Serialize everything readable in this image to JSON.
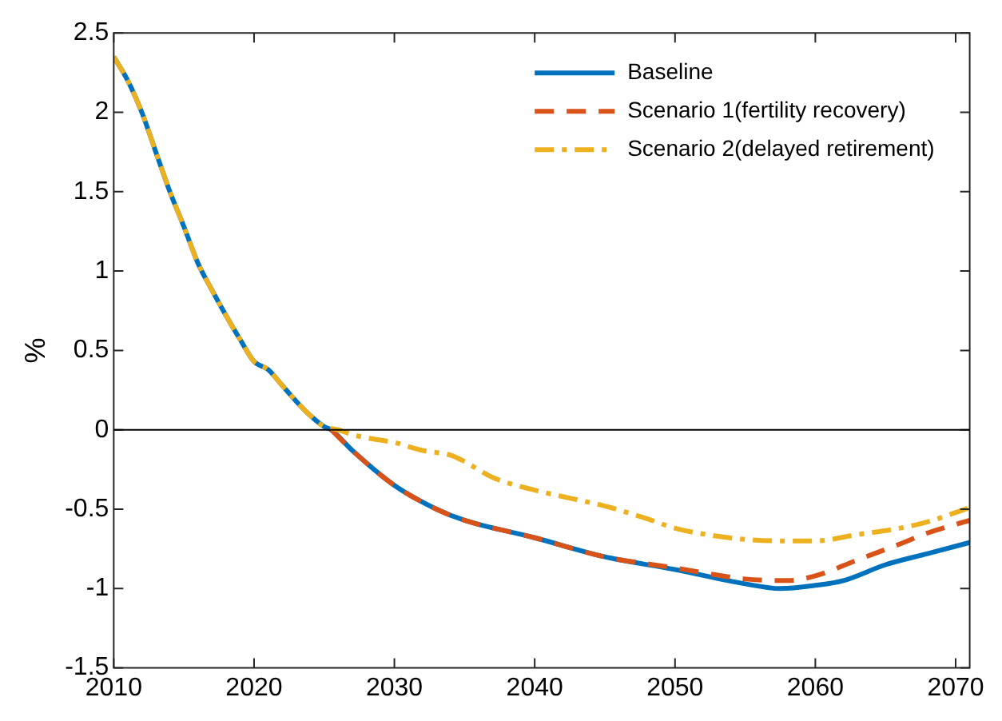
{
  "chart_data": {
    "type": "line",
    "ylabel": "%",
    "xlim": [
      2010,
      2071
    ],
    "xticks": [
      2010,
      2020,
      2030,
      2040,
      2050,
      2060,
      2070
    ],
    "ylim": [
      -1.5,
      2.5
    ],
    "yticks": [
      -1.5,
      -1,
      -0.5,
      0,
      0.5,
      1,
      1.5,
      2,
      2.5
    ],
    "legend": "top right",
    "grid": false,
    "marker": "none",
    "ref_lines": [
      {
        "axis": "y",
        "value": 0,
        "color": "#000000"
      }
    ],
    "series": [
      {
        "name": "Baseline",
        "color": "#0072bd",
        "line_style": "solid",
        "x": [
          2010,
          2011,
          2012,
          2013,
          2014,
          2015,
          2016,
          2017,
          2018,
          2019,
          2020,
          2021,
          2022,
          2023,
          2024,
          2025,
          2025.5,
          2027,
          2030,
          2033,
          2035,
          2040,
          2045,
          2050,
          2055,
          2057.5,
          2060,
          2062,
          2065,
          2068,
          2071
        ],
        "values": [
          2.35,
          2.2,
          2.0,
          1.75,
          1.5,
          1.28,
          1.05,
          0.88,
          0.72,
          0.57,
          0.43,
          0.38,
          0.28,
          0.18,
          0.09,
          0.02,
          0,
          -0.13,
          -0.35,
          -0.5,
          -0.57,
          -0.68,
          -0.8,
          -0.88,
          -0.97,
          -1.0,
          -0.98,
          -0.95,
          -0.85,
          -0.78,
          -0.71
        ]
      },
      {
        "name": "Scenario 1(fertility recovery)",
        "color": "#d95319",
        "line_style": "dashed",
        "x": [
          2025.5,
          2027,
          2030,
          2033,
          2035,
          2040,
          2045,
          2050,
          2055,
          2058,
          2060,
          2063,
          2066,
          2068,
          2071
        ],
        "values": [
          0,
          -0.13,
          -0.35,
          -0.5,
          -0.57,
          -0.68,
          -0.8,
          -0.87,
          -0.94,
          -0.95,
          -0.92,
          -0.82,
          -0.72,
          -0.65,
          -0.57
        ]
      },
      {
        "name": "Scenario 2(delayed retirement)",
        "color": "#edb120",
        "line_style": "dashdot",
        "x": [
          2010,
          2011,
          2012,
          2013,
          2014,
          2015,
          2016,
          2017,
          2018,
          2019,
          2020,
          2021,
          2022,
          2023,
          2024,
          2025,
          2026,
          2027,
          2028,
          2030,
          2032,
          2034,
          2035,
          2037,
          2040,
          2043,
          2045,
          2048,
          2050,
          2053,
          2055,
          2058,
          2060,
          2063,
          2066,
          2068,
          2071
        ],
        "values": [
          2.35,
          2.2,
          2.0,
          1.75,
          1.5,
          1.28,
          1.05,
          0.88,
          0.72,
          0.57,
          0.43,
          0.38,
          0.28,
          0.18,
          0.09,
          0.02,
          0,
          -0.03,
          -0.05,
          -0.08,
          -0.13,
          -0.16,
          -0.2,
          -0.3,
          -0.38,
          -0.44,
          -0.48,
          -0.56,
          -0.62,
          -0.67,
          -0.69,
          -0.7,
          -0.7,
          -0.66,
          -0.62,
          -0.58,
          -0.49
        ]
      }
    ]
  }
}
